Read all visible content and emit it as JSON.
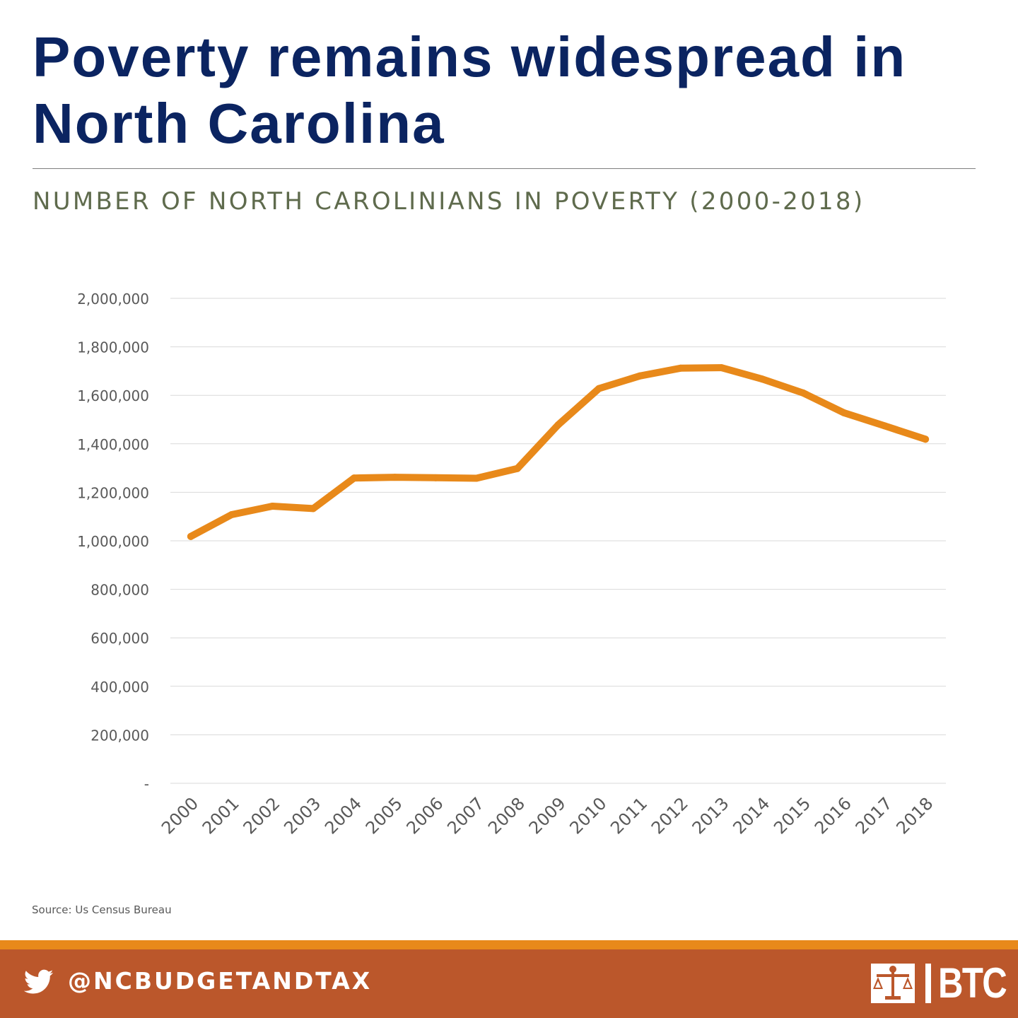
{
  "headline": "Poverty remains widespread in North Carolina",
  "source": "Source: Us Census Bureau",
  "footer": {
    "handle": "@NCBUDGETANDTAX",
    "logo_text": "BTC",
    "icon": "twitter-bird-icon",
    "logo_icon": "justice-scales-icon"
  },
  "colors": {
    "headline": "#0b2461",
    "subtitle": "#5f6b4d",
    "line": "#e8891a",
    "footer": "#bb572b",
    "footer_stripe": "#e8891a"
  },
  "chart_data": {
    "type": "line",
    "title": "NUMBER OF NORTH CAROLINIANS IN POVERTY (2000-2018)",
    "xlabel": "",
    "ylabel": "",
    "categories": [
      "2000",
      "2001",
      "2002",
      "2003",
      "2004",
      "2005",
      "2006",
      "2007",
      "2008",
      "2009",
      "2010",
      "2011",
      "2012",
      "2013",
      "2014",
      "2015",
      "2016",
      "2017",
      "2018"
    ],
    "series": [
      {
        "values": [
          1018000,
          1108000,
          1143000,
          1133000,
          1259000,
          1262000,
          1260000,
          1258000,
          1298000,
          1478000,
          1628000,
          1680000,
          1712000,
          1714000,
          1667000,
          1610000,
          1528000,
          1474000,
          1419000
        ]
      }
    ],
    "ylim": [
      0,
      2000000
    ],
    "yticks": [
      0,
      200000,
      400000,
      600000,
      800000,
      1000000,
      1200000,
      1400000,
      1600000,
      1800000,
      2000000
    ],
    "ytick_labels": [
      "-",
      "200,000",
      "400,000",
      "600,000",
      "800,000",
      "1,000,000",
      "1,200,000",
      "1,400,000",
      "1,600,000",
      "1,800,000",
      "2,000,000"
    ],
    "grid": true,
    "legend": "none"
  }
}
